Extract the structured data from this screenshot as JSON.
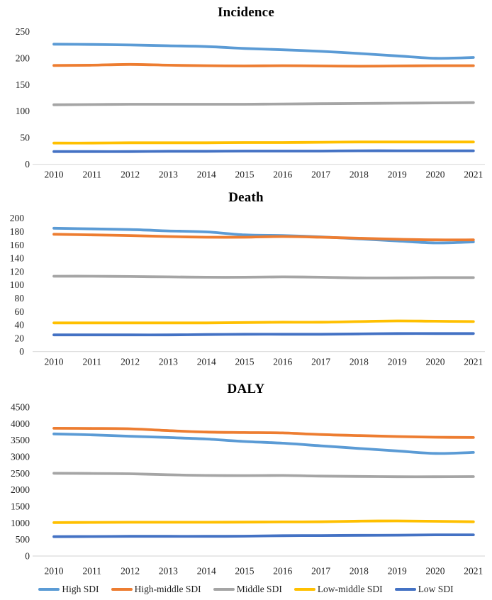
{
  "figure": {
    "description": "Three stacked line charts of age-standardized rates by SDI quintile, 2010-2021",
    "axis_line_color": "#D9D9D9",
    "text_color": "#1f1f1f",
    "title_color": "#000000"
  },
  "chart_data": [
    {
      "type": "line",
      "title": "Incidence",
      "x": [
        "2010",
        "2011",
        "2012",
        "2013",
        "2014",
        "2015",
        "2016",
        "2017",
        "2018",
        "2019",
        "2020",
        "2021"
      ],
      "xlabel": "",
      "ylabel": "",
      "ylim": [
        0,
        250
      ],
      "yticks": [
        0,
        50,
        100,
        150,
        200,
        250
      ],
      "grid": false,
      "legend_position": "shared-bottom",
      "series": [
        {
          "name": "High SDI",
          "color": "#5B9BD5",
          "values": [
            226,
            225.5,
            224.5,
            223,
            221.5,
            218,
            215.5,
            212.5,
            208.5,
            204,
            199.5,
            201
          ]
        },
        {
          "name": "High-middle SDI",
          "color": "#ED7D31",
          "values": [
            186,
            186.5,
            188,
            186.5,
            185.5,
            185,
            185.5,
            185,
            184.5,
            185,
            185.5,
            185.5
          ]
        },
        {
          "name": "Middle SDI",
          "color": "#A5A5A5",
          "values": [
            112,
            112.5,
            113,
            113,
            113,
            113,
            113.5,
            114,
            114.5,
            115,
            115.5,
            116
          ]
        },
        {
          "name": "Low-middle SDI",
          "color": "#FFC000",
          "values": [
            40,
            40,
            40.5,
            40.5,
            40.5,
            41,
            41,
            41.5,
            42,
            42,
            42,
            42
          ]
        },
        {
          "name": "Low SDI",
          "color": "#4472C4",
          "values": [
            24,
            24,
            24,
            24.5,
            24.5,
            25,
            25,
            25,
            25.5,
            25.5,
            25.5,
            25.5
          ]
        }
      ]
    },
    {
      "type": "line",
      "title": "Death",
      "x": [
        "2010",
        "2011",
        "2012",
        "2013",
        "2014",
        "2015",
        "2016",
        "2017",
        "2018",
        "2019",
        "2020",
        "2021"
      ],
      "xlabel": "",
      "ylabel": "",
      "ylim": [
        0,
        200
      ],
      "yticks": [
        0,
        20,
        40,
        60,
        80,
        100,
        120,
        140,
        160,
        180,
        200
      ],
      "grid": false,
      "legend_position": "shared-bottom",
      "series": [
        {
          "name": "High SDI",
          "color": "#5B9BD5",
          "values": [
            185,
            184,
            183,
            181,
            179.5,
            175,
            174,
            172,
            169,
            166,
            163,
            164.5
          ]
        },
        {
          "name": "High-middle SDI",
          "color": "#ED7D31",
          "values": [
            176,
            175,
            174,
            172.5,
            171.5,
            171.5,
            172.5,
            171.5,
            170,
            168.5,
            167.5,
            167.5
          ]
        },
        {
          "name": "Middle SDI",
          "color": "#A5A5A5",
          "values": [
            113,
            113,
            112.5,
            112,
            111.5,
            111.5,
            112,
            111.5,
            110.5,
            110.5,
            111,
            111
          ]
        },
        {
          "name": "Low-middle SDI",
          "color": "#FFC000",
          "values": [
            43,
            43,
            43,
            43,
            43,
            43.5,
            44,
            44,
            45,
            46,
            45.5,
            45
          ]
        },
        {
          "name": "Low SDI",
          "color": "#4472C4",
          "values": [
            25,
            25,
            25,
            25,
            25.5,
            26,
            26,
            26,
            26.5,
            27,
            27,
            27
          ]
        }
      ]
    },
    {
      "type": "line",
      "title": "DALY",
      "x": [
        "2010",
        "2011",
        "2012",
        "2013",
        "2014",
        "2015",
        "2016",
        "2017",
        "2018",
        "2019",
        "2020",
        "2021"
      ],
      "xlabel": "",
      "ylabel": "",
      "ylim": [
        0,
        4500
      ],
      "yticks": [
        0,
        500,
        1000,
        1500,
        2000,
        2500,
        3000,
        3500,
        4000,
        4500
      ],
      "grid": false,
      "legend_position": "shared-bottom",
      "series": [
        {
          "name": "High SDI",
          "color": "#5B9BD5",
          "values": [
            3690,
            3660,
            3620,
            3580,
            3535,
            3460,
            3410,
            3330,
            3250,
            3175,
            3100,
            3130
          ]
        },
        {
          "name": "High-middle SDI",
          "color": "#ED7D31",
          "values": [
            3860,
            3855,
            3845,
            3790,
            3745,
            3730,
            3720,
            3670,
            3640,
            3610,
            3590,
            3580
          ]
        },
        {
          "name": "Middle SDI",
          "color": "#A5A5A5",
          "values": [
            2500,
            2495,
            2485,
            2455,
            2435,
            2430,
            2435,
            2415,
            2405,
            2395,
            2395,
            2400
          ]
        },
        {
          "name": "Low-middle SDI",
          "color": "#FFC000",
          "values": [
            1010,
            1015,
            1020,
            1020,
            1020,
            1025,
            1030,
            1035,
            1055,
            1060,
            1050,
            1035
          ]
        },
        {
          "name": "Low SDI",
          "color": "#4472C4",
          "values": [
            585,
            590,
            595,
            595,
            595,
            600,
            615,
            620,
            625,
            630,
            640,
            640
          ]
        }
      ]
    }
  ],
  "legend": {
    "items": [
      {
        "label": "High SDI",
        "color": "#5B9BD5"
      },
      {
        "label": "High-middle SDI",
        "color": "#ED7D31"
      },
      {
        "label": "Middle SDI",
        "color": "#A5A5A5"
      },
      {
        "label": "Low-middle SDI",
        "color": "#FFC000"
      },
      {
        "label": "Low SDI",
        "color": "#4472C4"
      }
    ]
  }
}
